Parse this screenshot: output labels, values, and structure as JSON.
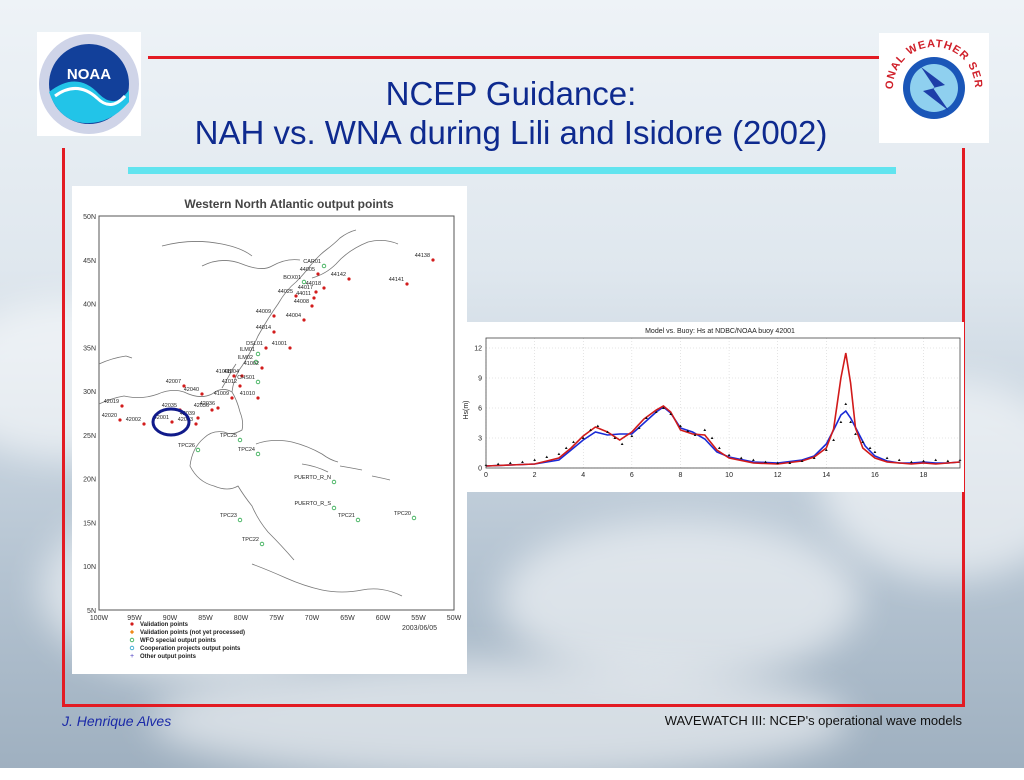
{
  "slide": {
    "title_line1": "NCEP Guidance:",
    "title_line2": "NAH vs. WNA during Lili and Isidore (2002)",
    "footer_author": "J. Henrique Alves",
    "footer_caption": "WAVEWATCH III: NCEP's operational wave models"
  },
  "logos": {
    "noaa": "NOAA",
    "nws": "NATIONAL WEATHER SERVICE"
  },
  "map": {
    "title": "Western North Atlantic output points",
    "date": "2003/06/05",
    "lat_labels": [
      "50N",
      "45N",
      "40N",
      "35N",
      "30N",
      "25N",
      "20N",
      "15N",
      "10N",
      "5N"
    ],
    "lon_labels": [
      "100W",
      "95W",
      "90W",
      "85W",
      "80W",
      "75W",
      "70W",
      "65W",
      "60W",
      "55W",
      "50W"
    ],
    "legend": [
      "Validation points",
      "Validation points (not yet processed)",
      "WFO special output points",
      "Cooperation projects output points",
      "Other output points"
    ],
    "stations": [
      {
        "id": "44138",
        "type": "validation"
      },
      {
        "id": "44141",
        "type": "validation"
      },
      {
        "id": "CAR01",
        "type": "wfo"
      },
      {
        "id": "44142",
        "type": "validation"
      },
      {
        "id": "44005",
        "type": "validation"
      },
      {
        "id": "BOX01",
        "type": "wfo"
      },
      {
        "id": "44018",
        "type": "validation"
      },
      {
        "id": "44017",
        "type": "validation"
      },
      {
        "id": "44011",
        "type": "validation"
      },
      {
        "id": "44025",
        "type": "validation"
      },
      {
        "id": "44008",
        "type": "validation"
      },
      {
        "id": "44004",
        "type": "validation"
      },
      {
        "id": "44009",
        "type": "validation"
      },
      {
        "id": "44014",
        "type": "validation"
      },
      {
        "id": "DSL01",
        "type": "validation"
      },
      {
        "id": "41001",
        "type": "validation"
      },
      {
        "id": "ILM01",
        "type": "wfo"
      },
      {
        "id": "ILM02",
        "type": "wfo"
      },
      {
        "id": "41004",
        "type": "validation"
      },
      {
        "id": "41002",
        "type": "validation"
      },
      {
        "id": "CHS01",
        "type": "wfo"
      },
      {
        "id": "41008",
        "type": "validation"
      },
      {
        "id": "41012",
        "type": "validation"
      },
      {
        "id": "41009",
        "type": "validation"
      },
      {
        "id": "41010",
        "type": "validation"
      },
      {
        "id": "42036",
        "type": "validation"
      },
      {
        "id": "42007",
        "type": "validation"
      },
      {
        "id": "42040",
        "type": "validation"
      },
      {
        "id": "42035",
        "type": "validation"
      },
      {
        "id": "42019",
        "type": "validation"
      },
      {
        "id": "42020",
        "type": "validation"
      },
      {
        "id": "42002",
        "type": "validation"
      },
      {
        "id": "42001",
        "type": "validation"
      },
      {
        "id": "42039",
        "type": "validation"
      },
      {
        "id": "42003",
        "type": "validation"
      },
      {
        "id": "42036",
        "type": "validation"
      },
      {
        "id": "TPC25",
        "type": "wfo"
      },
      {
        "id": "TPC26",
        "type": "wfo"
      },
      {
        "id": "TPC24",
        "type": "wfo"
      },
      {
        "id": "PUERTO_R_N",
        "type": "wfo"
      },
      {
        "id": "PUERTO_R_S",
        "type": "wfo"
      },
      {
        "id": "TPC23",
        "type": "wfo"
      },
      {
        "id": "TPC21",
        "type": "wfo"
      },
      {
        "id": "TPC20",
        "type": "wfo"
      },
      {
        "id": "TPC22",
        "type": "wfo"
      }
    ],
    "highlighted_station": "42001"
  },
  "chart_data": {
    "type": "line",
    "title": "Model vs. Buoy: Hs at NDBC/NOAA buoy 42001",
    "xlabel": "",
    "ylabel": "Hs(m)",
    "xlim": [
      0,
      19.5
    ],
    "ylim": [
      0,
      13
    ],
    "xticks": [
      0,
      2,
      4,
      6,
      8,
      10,
      12,
      14,
      16,
      18
    ],
    "yticks": [
      0,
      3,
      6,
      9,
      12
    ],
    "grid": true,
    "series": [
      {
        "color": "#1a2bd6",
        "x": [
          0,
          1,
          2,
          3,
          3.5,
          4,
          4.5,
          5,
          5.5,
          6,
          6.5,
          7,
          7.3,
          7.6,
          8,
          8.5,
          9,
          9.5,
          10,
          11,
          12,
          13,
          13.5,
          14,
          14.3,
          14.6,
          14.8,
          15,
          15.3,
          15.6,
          16,
          16.5,
          17,
          17.5,
          18,
          18.5,
          19,
          19.5
        ],
        "y": [
          0.2,
          0.3,
          0.4,
          0.8,
          1.8,
          2.8,
          3.6,
          3.3,
          3.4,
          3.4,
          4.5,
          5.6,
          6.1,
          5.5,
          4.0,
          3.6,
          2.9,
          1.6,
          1.1,
          0.6,
          0.5,
          0.8,
          1.2,
          2.4,
          3.8,
          5.3,
          5.7,
          5.0,
          3.6,
          2.2,
          1.2,
          0.7,
          0.5,
          0.5,
          0.6,
          0.5,
          0.5,
          0.6
        ]
      },
      {
        "color": "#d11a1a",
        "x": [
          0,
          1,
          2,
          3,
          3.5,
          4,
          4.5,
          5,
          5.5,
          6,
          6.5,
          7,
          7.3,
          7.6,
          8,
          8.5,
          9,
          9.5,
          10,
          11,
          12,
          13,
          13.5,
          14,
          14.3,
          14.6,
          14.8,
          15,
          15.2,
          15.5,
          16,
          16.5,
          17,
          17.5,
          18,
          18.5,
          19,
          19.5
        ],
        "y": [
          0.2,
          0.3,
          0.4,
          1.0,
          2.0,
          3.2,
          4.1,
          3.6,
          2.8,
          3.6,
          4.9,
          5.8,
          6.2,
          5.6,
          3.8,
          3.4,
          3.3,
          1.8,
          1.0,
          0.5,
          0.4,
          0.7,
          1.1,
          2.0,
          3.9,
          9.0,
          11.5,
          8.5,
          4.0,
          2.0,
          1.0,
          0.6,
          0.5,
          0.4,
          0.5,
          0.4,
          0.5,
          0.6
        ]
      },
      {
        "color": "#111111",
        "x": [
          0,
          0.5,
          1,
          1.5,
          2,
          2.5,
          3,
          3.3,
          3.6,
          4,
          4.3,
          4.6,
          5,
          5.3,
          5.6,
          6,
          6.3,
          6.6,
          7,
          7.3,
          7.6,
          8,
          8.3,
          8.6,
          9,
          9.3,
          9.6,
          10,
          10.5,
          11,
          11.5,
          12,
          12.5,
          13,
          13.5,
          14,
          14.3,
          14.6,
          14.8,
          15,
          15.2,
          15.5,
          15.8,
          16,
          16.5,
          17,
          17.5,
          18,
          18.5,
          19,
          19.5
        ],
        "y": [
          0.3,
          0.4,
          0.5,
          0.6,
          0.8,
          1.1,
          1.4,
          2.0,
          2.6,
          3.0,
          3.8,
          4.2,
          3.6,
          3.0,
          2.4,
          3.2,
          4.0,
          5.0,
          5.6,
          6.0,
          5.4,
          4.2,
          3.7,
          3.3,
          3.8,
          3.0,
          2.0,
          1.3,
          1.0,
          0.8,
          0.6,
          0.5,
          0.5,
          0.7,
          1.0,
          1.8,
          2.8,
          4.6,
          6.4,
          4.6,
          3.4,
          2.6,
          2.0,
          1.6,
          1.0,
          0.8,
          0.6,
          0.7,
          0.8,
          0.7,
          0.8
        ]
      }
    ]
  }
}
